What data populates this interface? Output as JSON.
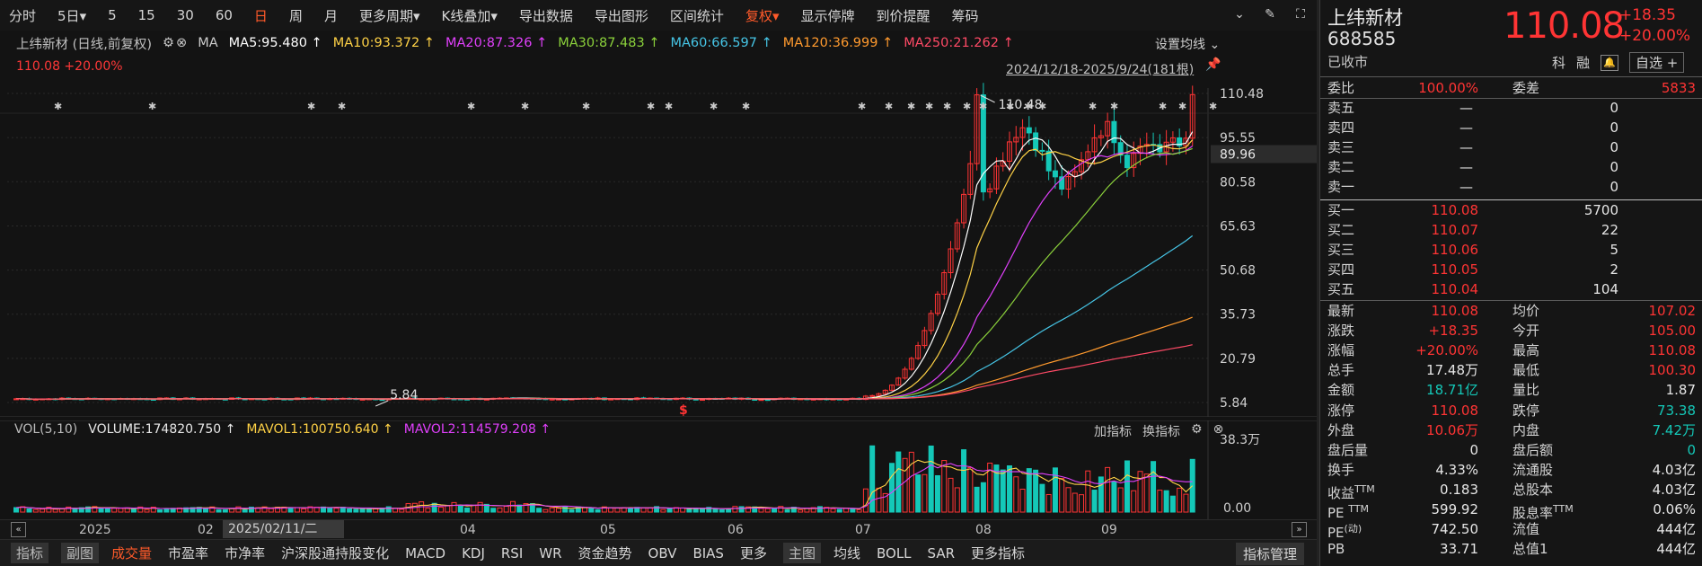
{
  "toolbar": {
    "items": [
      "分时",
      "5日",
      "5",
      "15",
      "30",
      "60",
      "日",
      "周",
      "月",
      "更多周期",
      "K线叠加",
      "导出数据",
      "导出图形",
      "区间统计",
      "复权",
      "显示停牌",
      "到价提醒",
      "筹码"
    ],
    "active": "日"
  },
  "chart_header": {
    "title": "上纬新材 (日线,前复权)",
    "ma_label": "MA",
    "ma5": "MA5:95.480 ↑",
    "ma10": "MA10:93.372 ↑",
    "ma20": "MA20:87.326 ↑",
    "ma30": "MA30:87.483 ↑",
    "ma60": "MA60:66.597 ↑",
    "ma120": "MA120:36.999 ↑",
    "ma250": "MA250:21.262 ↑",
    "price_line": "110.08 +20.00%",
    "set_ma": "设置均线",
    "date_range": "2024/12/18-2025/9/24(181根)"
  },
  "colors": {
    "up": "#ff3434",
    "down": "#14c8b8",
    "ma5": "#ffffff",
    "ma10": "#ffd246",
    "ma20": "#e040fb",
    "ma30": "#8bd13b",
    "ma60": "#46c5e6",
    "ma120": "#ff9a2e",
    "ma250": "#ff4a66"
  },
  "chart_data": {
    "type": "candlestick",
    "y_ticks": [
      "110.48",
      "95.55",
      "89.96",
      "80.58",
      "65.63",
      "50.68",
      "35.73",
      "20.79",
      "5.84"
    ],
    "high_label": "110.48",
    "low_label": "5.84",
    "current_price": "89.96",
    "vol_ticks": [
      "38.3万",
      "0.00"
    ],
    "x_labels": [
      "2025",
      "02",
      "04",
      "05",
      "06",
      "07",
      "08",
      "09"
    ],
    "markers": [
      "$"
    ]
  },
  "volume": {
    "label": "VOL(5,10)",
    "volume": "VOLUME:174820.750 ↑",
    "mavol1": "MAVOL1:100750.640 ↑",
    "mavol2": "MAVOL2:114579.208 ↑",
    "tools": [
      "加指标",
      "换指标"
    ]
  },
  "time_axis": {
    "cursor": "2025/02/11/二"
  },
  "bottombar": {
    "items": [
      "指标",
      "副图",
      "成交量",
      "市盈率",
      "市净率",
      "沪深股通持股变化",
      "MACD",
      "KDJ",
      "RSI",
      "WR",
      "资金趋势",
      "OBV",
      "BIAS",
      "更多",
      "主图",
      "均线",
      "BOLL",
      "SAR",
      "更多指标"
    ],
    "right": "指标管理"
  },
  "quote": {
    "name": "上纬新材",
    "code": "688585",
    "status": "已收市",
    "price": "110.08",
    "change": "+18.35",
    "change_pct": "+20.00%",
    "tags": [
      "科",
      "融"
    ],
    "zixuan": "自选 +",
    "weibi_label": "委比",
    "weibi": "100.00%",
    "weicha_label": "委差",
    "weicha": "5833",
    "sells": [
      {
        "label": "卖五",
        "price": "—",
        "vol": "0"
      },
      {
        "label": "卖四",
        "price": "—",
        "vol": "0"
      },
      {
        "label": "卖三",
        "price": "—",
        "vol": "0"
      },
      {
        "label": "卖二",
        "price": "—",
        "vol": "0"
      },
      {
        "label": "卖一",
        "price": "—",
        "vol": "0"
      }
    ],
    "buys": [
      {
        "label": "买一",
        "price": "110.08",
        "vol": "5700"
      },
      {
        "label": "买二",
        "price": "110.07",
        "vol": "22"
      },
      {
        "label": "买三",
        "price": "110.06",
        "vol": "5"
      },
      {
        "label": "买四",
        "price": "110.05",
        "vol": "2"
      },
      {
        "label": "买五",
        "price": "110.04",
        "vol": "104"
      }
    ],
    "stats": [
      {
        "l1": "最新",
        "v1": "110.08",
        "c1": "red",
        "l2": "均价",
        "v2": "107.02",
        "c2": "red"
      },
      {
        "l1": "涨跌",
        "v1": "+18.35",
        "c1": "red",
        "l2": "今开",
        "v2": "105.00",
        "c2": "red"
      },
      {
        "l1": "涨幅",
        "v1": "+20.00%",
        "c1": "red",
        "l2": "最高",
        "v2": "110.08",
        "c2": "red"
      },
      {
        "l1": "总手",
        "v1": "17.48万",
        "c1": "white",
        "l2": "最低",
        "v2": "100.30",
        "c2": "red"
      },
      {
        "l1": "金额",
        "v1": "18.71亿",
        "c1": "green",
        "l2": "量比",
        "v2": "1.87",
        "c2": "white"
      },
      {
        "l1": "涨停",
        "v1": "110.08",
        "c1": "red",
        "l2": "跌停",
        "v2": "73.38",
        "c2": "green"
      },
      {
        "l1": "外盘",
        "v1": "10.06万",
        "c1": "red",
        "l2": "内盘",
        "v2": "7.42万",
        "c2": "green"
      },
      {
        "l1": "盘后量",
        "v1": "0",
        "c1": "white",
        "l2": "盘后额",
        "v2": "0",
        "c2": "green"
      },
      {
        "l1": "换手",
        "v1": "4.33%",
        "c1": "white",
        "l2": "流通股",
        "v2": "4.03亿",
        "c2": "white"
      },
      {
        "l1": "收益TTM",
        "v1": "0.183",
        "c1": "white",
        "l2": "总股本",
        "v2": "4.03亿",
        "c2": "white"
      },
      {
        "l1": "PE TTM",
        "v1": "599.92",
        "c1": "white",
        "l2": "股息率TTM",
        "v2": "0.06%",
        "c2": "white"
      },
      {
        "l1": "PE(动)",
        "v1": "742.50",
        "c1": "white",
        "l2": "流值",
        "v2": "444亿",
        "c2": "white"
      },
      {
        "l1": "PB",
        "v1": "33.71",
        "c1": "white",
        "l2": "总值1",
        "v2": "444亿",
        "c2": "white"
      }
    ]
  }
}
